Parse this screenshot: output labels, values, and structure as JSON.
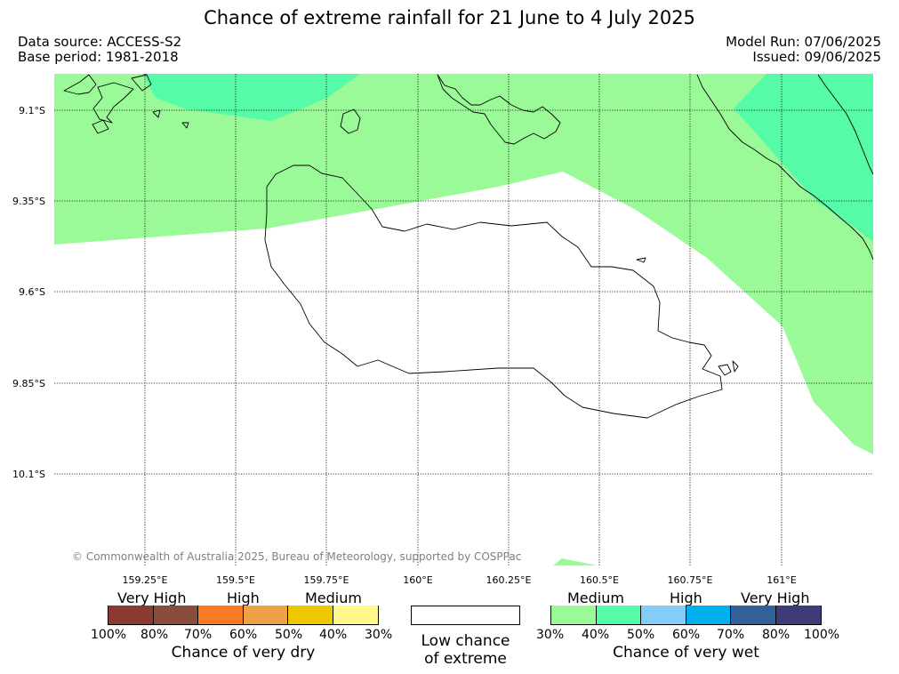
{
  "header": {
    "title": "Chance of extreme rainfall for 21 June to 4 July 2025",
    "data_source": "Data source: ACCESS-S2",
    "base_period": "Base period: 1981-2018",
    "model_run": "Model Run: 07/06/2025",
    "issued": "Issued: 09/06/2025"
  },
  "map": {
    "lat_labels": [
      "9.1°S",
      "9.35°S",
      "9.6°S",
      "9.85°S",
      "10.1°S"
    ],
    "lon_labels": [
      "159.25°E",
      "159.5°E",
      "159.75°E",
      "160°E",
      "160.25°E",
      "160.5°E",
      "160.75°E",
      "161°E"
    ],
    "copyright": "© Commonwealth of Australia 2025, Bureau of Meteorology, supported by COSPPac",
    "colors": {
      "medium_wet": "#9bfa98",
      "high_wet_30": "#55fba6",
      "coast": "#000000",
      "grid": "#000000"
    }
  },
  "legend": {
    "dry": {
      "categories": [
        "Very High",
        "High",
        "Medium"
      ],
      "percent_labels": [
        "100%",
        "80%",
        "70%",
        "60%",
        "50%",
        "40%",
        "30%"
      ],
      "colors": [
        "#8b3a32",
        "#8b4d3b",
        "#f97a24",
        "#f0a046",
        "#efc700",
        "#fff78a"
      ],
      "title": "Chance of very dry"
    },
    "low": {
      "title_line1": "Low chance",
      "title_line2": "of extreme",
      "color": "#ffffff"
    },
    "wet": {
      "categories": [
        "Medium",
        "High",
        "Very High"
      ],
      "percent_labels": [
        "30%",
        "40%",
        "50%",
        "60%",
        "70%",
        "80%",
        "100%"
      ],
      "colors": [
        "#9bfa98",
        "#55fba6",
        "#85cdf9",
        "#00b0ec",
        "#34609a",
        "#3e3b79"
      ],
      "title": "Chance of very wet"
    }
  }
}
